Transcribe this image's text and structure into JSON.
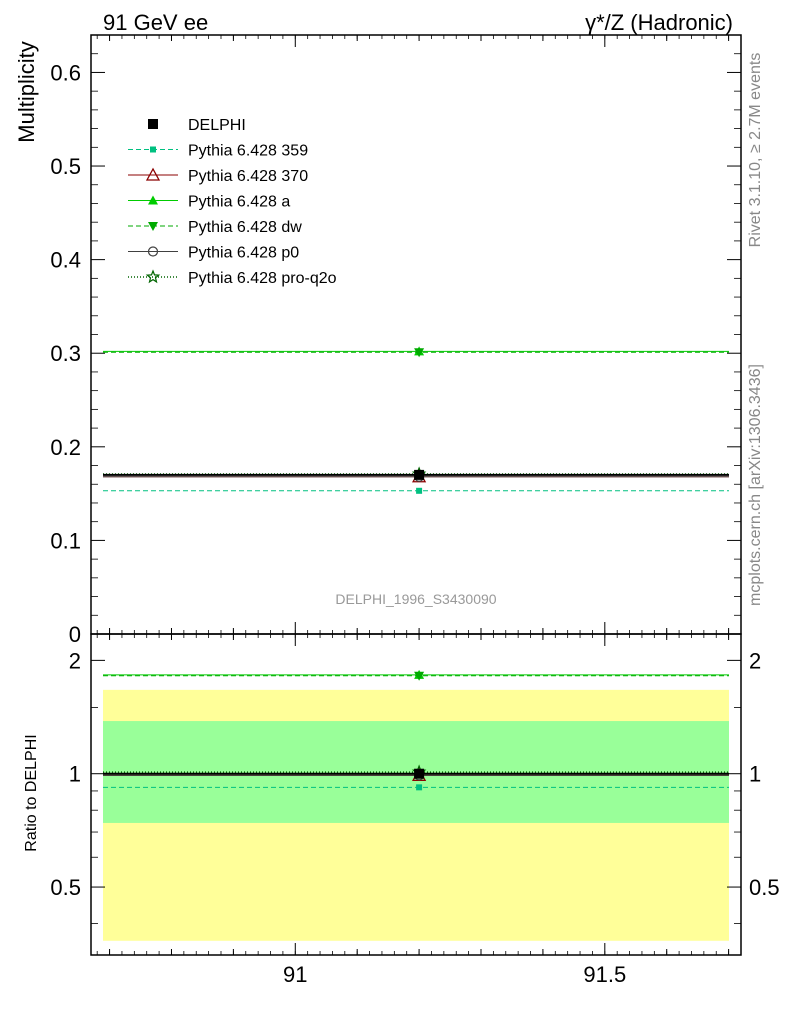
{
  "header": {
    "left": "91 GeV ee",
    "right": "γ*/Z (Hadronic)"
  },
  "side_text": {
    "rivet": "Rivet 3.1.10, ≥ 2.7M events",
    "mcplots": "mcplots.cern.ch [arXiv:1306.3436]"
  },
  "watermark": "DELPHI_1996_S3430090",
  "colors": {
    "data": "#000000",
    "p359": "#00c080",
    "p370": "#8b0000",
    "pa": "#00cc00",
    "pdw": "#00aa00",
    "pp0": "#404040",
    "pq2o": "#006400",
    "band_outer": "#ffff99",
    "band_inner": "#99ff99"
  },
  "chart_data": [
    {
      "type": "line",
      "ylabel": "Multiplicity",
      "xlim": [
        90.67,
        91.72
      ],
      "ylim": [
        0,
        0.64
      ],
      "y_ticks": [
        "0",
        "0.1",
        "0.2",
        "0.3",
        "0.4",
        "0.5",
        "0.6"
      ],
      "x_bin": [
        90.67,
        91.72
      ],
      "x_center": 91.2,
      "legend_position": "top-left",
      "series": [
        {
          "name": "DELPHI",
          "value": 0.17
        },
        {
          "name": "Pythia 6.428 359",
          "value": 0.153
        },
        {
          "name": "Pythia 6.428 370",
          "value": 0.168
        },
        {
          "name": "Pythia 6.428 a",
          "value": 0.302
        },
        {
          "name": "Pythia 6.428 dw",
          "value": 0.301
        },
        {
          "name": "Pythia 6.428 p0",
          "value": 0.168
        },
        {
          "name": "Pythia 6.428 pro-q2o",
          "value": 0.171
        }
      ]
    },
    {
      "type": "line",
      "ylabel": "Ratio to DELPHI",
      "xlim": [
        90.67,
        91.72
      ],
      "ylim": [
        0.33,
        2.35
      ],
      "y_ticks": [
        "0.5",
        "1",
        "2"
      ],
      "x_ticks": [
        "91",
        "91.5"
      ],
      "bands": {
        "outer": [
          0.36,
          1.67
        ],
        "inner": [
          0.74,
          1.38
        ]
      },
      "series": [
        {
          "name": "DELPHI",
          "value": 1.0
        },
        {
          "name": "Pythia 6.428 359",
          "value": 0.92
        },
        {
          "name": "Pythia 6.428 370",
          "value": 0.99
        },
        {
          "name": "Pythia 6.428 a",
          "value": 1.83
        },
        {
          "name": "Pythia 6.428 dw",
          "value": 1.82
        },
        {
          "name": "Pythia 6.428 p0",
          "value": 0.99
        },
        {
          "name": "Pythia 6.428 pro-q2o",
          "value": 1.01
        }
      ]
    }
  ]
}
